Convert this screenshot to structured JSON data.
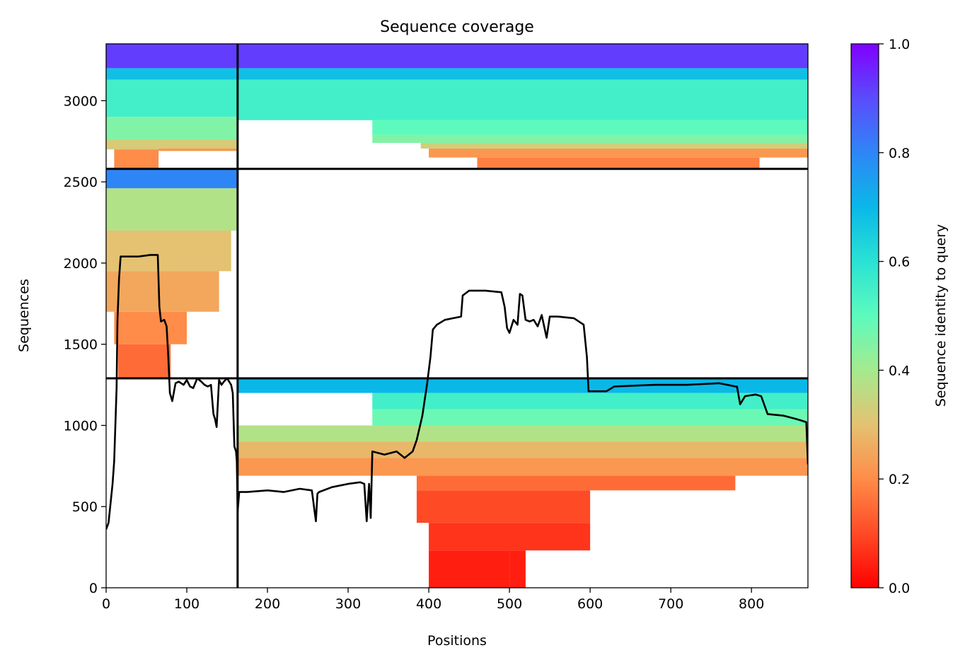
{
  "chart_data": {
    "type": "heatmap",
    "title": "Sequence coverage",
    "xlabel": "Positions",
    "ylabel": "Sequences",
    "xlim": [
      0,
      870
    ],
    "ylim": [
      0,
      3350
    ],
    "xticks": [
      0,
      100,
      200,
      300,
      400,
      500,
      600,
      700,
      800
    ],
    "yticks": [
      0,
      500,
      1000,
      1500,
      2000,
      2500,
      3000
    ],
    "colorbar": {
      "label": "Sequence identity to query",
      "range": [
        0,
        1
      ],
      "ticks": [
        "0.0",
        "0.2",
        "0.4",
        "0.6",
        "0.8",
        "1.0"
      ],
      "colormap": "rainbow_r"
    },
    "domain_boundaries": {
      "vertical_x": 163,
      "horizontal_y": [
        1290,
        2580
      ]
    },
    "coverage_curve": {
      "color": "#000000",
      "x": [
        0,
        3,
        8,
        10,
        13,
        14,
        16,
        18,
        25,
        40,
        55,
        64,
        66,
        68,
        72,
        75,
        77,
        79,
        82,
        86,
        90,
        96,
        100,
        104,
        108,
        113,
        118,
        122,
        126,
        130,
        133,
        135,
        137,
        140,
        143,
        146,
        150,
        155,
        157,
        159,
        161,
        162,
        163,
        165,
        175,
        200,
        220,
        240,
        255,
        260,
        262,
        264,
        280,
        300,
        315,
        320,
        323,
        326,
        328,
        330,
        345,
        360,
        370,
        380,
        385,
        392,
        398,
        402,
        405,
        410,
        420,
        440,
        442,
        450,
        470,
        490,
        494,
        497,
        500,
        505,
        510,
        513,
        516,
        520,
        525,
        530,
        535,
        540,
        546,
        550,
        560,
        580,
        592,
        596,
        598,
        620,
        630,
        680,
        720,
        760,
        780,
        782,
        786,
        792,
        805,
        812,
        820,
        840,
        855,
        862,
        868,
        870
      ],
      "y": [
        360,
        400,
        640,
        780,
        1230,
        1640,
        1900,
        2040,
        2040,
        2040,
        2050,
        2050,
        1730,
        1640,
        1650,
        1610,
        1430,
        1200,
        1150,
        1260,
        1270,
        1250,
        1280,
        1240,
        1230,
        1290,
        1270,
        1250,
        1240,
        1250,
        1070,
        1040,
        990,
        1280,
        1250,
        1270,
        1290,
        1250,
        1200,
        870,
        840,
        780,
        470,
        590,
        590,
        600,
        590,
        610,
        600,
        410,
        580,
        590,
        620,
        640,
        650,
        640,
        410,
        640,
        430,
        840,
        820,
        840,
        800,
        840,
        910,
        1060,
        1260,
        1420,
        1590,
        1620,
        1650,
        1670,
        1800,
        1830,
        1830,
        1820,
        1730,
        1600,
        1570,
        1650,
        1620,
        1810,
        1800,
        1650,
        1640,
        1650,
        1610,
        1680,
        1540,
        1670,
        1670,
        1660,
        1620,
        1420,
        1210,
        1210,
        1240,
        1250,
        1250,
        1260,
        1240,
        1240,
        1130,
        1180,
        1190,
        1180,
        1070,
        1060,
        1040,
        1030,
        1020,
        760
      ]
    },
    "coverage_blocks": [
      {
        "x": [
          0,
          163
        ],
        "y": [
          3200,
          3350
        ],
        "id": 0.92
      },
      {
        "x": [
          0,
          163
        ],
        "y": [
          3130,
          3200
        ],
        "id": 0.68
      },
      {
        "x": [
          0,
          163
        ],
        "y": [
          2900,
          3130
        ],
        "id": 0.55
      },
      {
        "x": [
          0,
          163
        ],
        "y": [
          2760,
          2900
        ],
        "id": 0.45
      },
      {
        "x": [
          0,
          163
        ],
        "y": [
          2700,
          2760
        ],
        "id": 0.32
      },
      {
        "x": [
          10,
          65
        ],
        "y": [
          2580,
          2700
        ],
        "id": 0.2
      },
      {
        "x": [
          65,
          163
        ],
        "y": [
          2690,
          2705
        ],
        "id": 0.22
      },
      {
        "x": [
          163,
          870
        ],
        "y": [
          3200,
          3350
        ],
        "id": 0.92
      },
      {
        "x": [
          163,
          870
        ],
        "y": [
          3130,
          3200
        ],
        "id": 0.68
      },
      {
        "x": [
          163,
          870
        ],
        "y": [
          2880,
          3130
        ],
        "id": 0.55
      },
      {
        "x": [
          330,
          870
        ],
        "y": [
          2790,
          2880
        ],
        "id": 0.5
      },
      {
        "x": [
          330,
          870
        ],
        "y": [
          2740,
          2790
        ],
        "id": 0.45
      },
      {
        "x": [
          390,
          870
        ],
        "y": [
          2705,
          2740
        ],
        "id": 0.33
      },
      {
        "x": [
          400,
          870
        ],
        "y": [
          2650,
          2705
        ],
        "id": 0.22
      },
      {
        "x": [
          460,
          810
        ],
        "y": [
          2580,
          2650
        ],
        "id": 0.18
      },
      {
        "x": [
          0,
          163
        ],
        "y": [
          2460,
          2580
        ],
        "id": 0.8
      },
      {
        "x": [
          0,
          163
        ],
        "y": [
          2200,
          2460
        ],
        "id": 0.38
      },
      {
        "x": [
          0,
          155
        ],
        "y": [
          1950,
          2200
        ],
        "id": 0.3
      },
      {
        "x": [
          0,
          140
        ],
        "y": [
          1700,
          1950
        ],
        "id": 0.25
      },
      {
        "x": [
          10,
          100
        ],
        "y": [
          1500,
          1700
        ],
        "id": 0.2
      },
      {
        "x": [
          15,
          80
        ],
        "y": [
          1290,
          1500
        ],
        "id": 0.15
      },
      {
        "x": [
          163,
          870
        ],
        "y": [
          1200,
          1290
        ],
        "id": 0.7
      },
      {
        "x": [
          330,
          870
        ],
        "y": [
          1100,
          1200
        ],
        "id": 0.55
      },
      {
        "x": [
          330,
          870
        ],
        "y": [
          1000,
          1100
        ],
        "id": 0.48
      },
      {
        "x": [
          163,
          870
        ],
        "y": [
          900,
          1000
        ],
        "id": 0.38
      },
      {
        "x": [
          163,
          870
        ],
        "y": [
          800,
          900
        ],
        "id": 0.28
      },
      {
        "x": [
          163,
          870
        ],
        "y": [
          690,
          800
        ],
        "id": 0.22
      },
      {
        "x": [
          385,
          780
        ],
        "y": [
          600,
          690
        ],
        "id": 0.15
      },
      {
        "x": [
          385,
          600
        ],
        "y": [
          400,
          600
        ],
        "id": 0.1
      },
      {
        "x": [
          400,
          600
        ],
        "y": [
          230,
          400
        ],
        "id": 0.07
      },
      {
        "x": [
          400,
          500
        ],
        "y": [
          0,
          230
        ],
        "id": 0.04
      },
      {
        "x": [
          500,
          520
        ],
        "y": [
          0,
          230
        ],
        "id": 0.04
      }
    ]
  }
}
